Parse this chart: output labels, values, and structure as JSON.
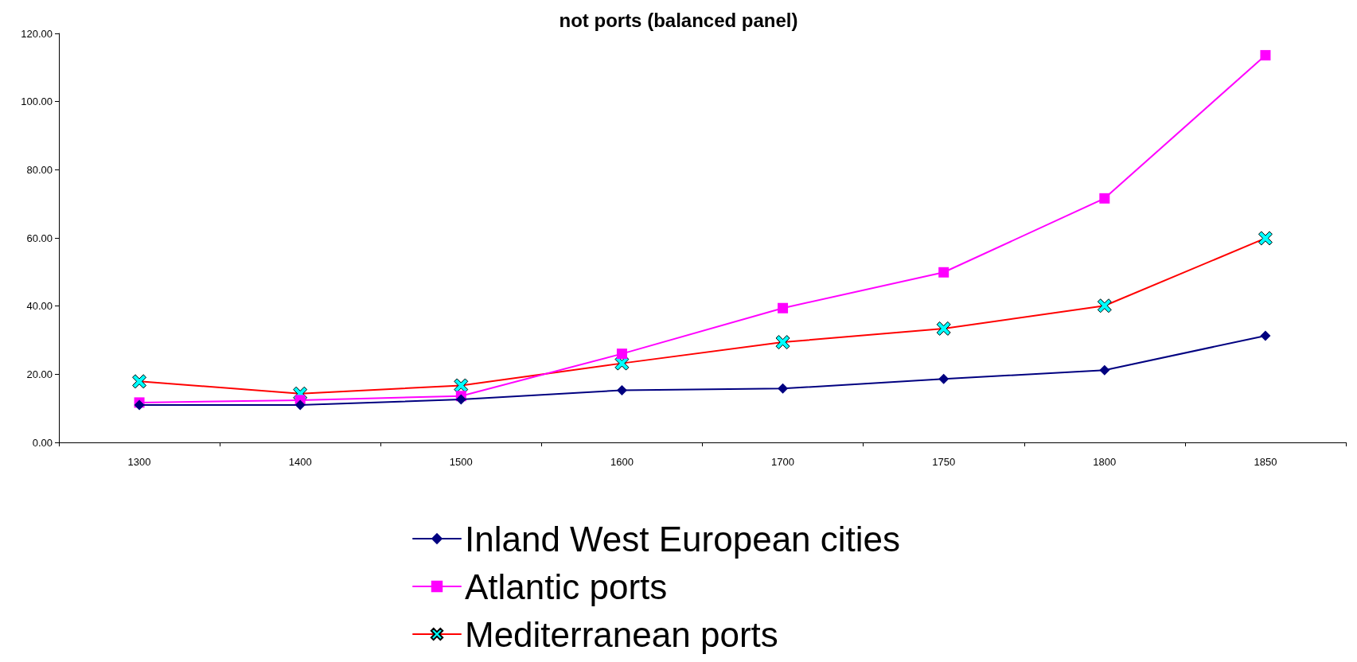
{
  "chart_data": {
    "type": "line",
    "title": "not ports (balanced panel)",
    "categories": [
      "1300",
      "1400",
      "1500",
      "1600",
      "1700",
      "1750",
      "1800",
      "1850"
    ],
    "series": [
      {
        "name": "Inland West European cities",
        "color": "#000080",
        "marker": "diamond",
        "values": [
          11.0,
          11.0,
          12.6,
          15.3,
          15.8,
          18.6,
          21.2,
          31.3
        ]
      },
      {
        "name": "Atlantic ports",
        "color": "#ff00ff",
        "marker": "square",
        "values": [
          11.7,
          12.4,
          13.6,
          26.0,
          39.4,
          49.9,
          71.6,
          113.6
        ]
      },
      {
        "name": "Mediterranean ports",
        "color": "#ff0000",
        "marker": "cross",
        "values": [
          17.9,
          14.3,
          16.7,
          23.2,
          29.4,
          33.4,
          40.1,
          59.9
        ]
      }
    ],
    "ylim": [
      0,
      120
    ],
    "yticks": [
      {
        "value": 0,
        "label": "0.00"
      },
      {
        "value": 20,
        "label": "20.00"
      },
      {
        "value": 40,
        "label": "40.00"
      },
      {
        "value": 60,
        "label": "60.00"
      },
      {
        "value": 80,
        "label": "80.00"
      },
      {
        "value": 100,
        "label": "100.00"
      },
      {
        "value": 120,
        "label": "120.00"
      }
    ],
    "grid": false,
    "legend": "bottom"
  }
}
